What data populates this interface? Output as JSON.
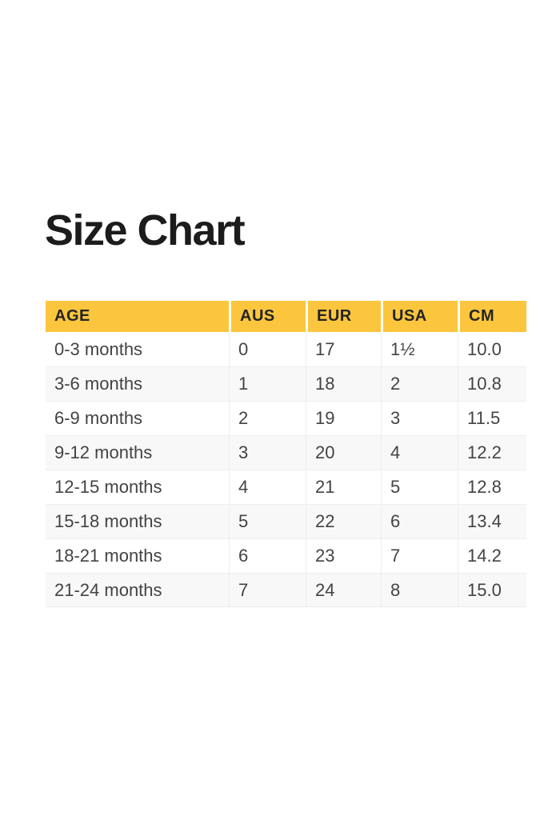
{
  "page": {
    "title": "Size Chart"
  },
  "table": {
    "columns": [
      "AGE",
      "AUS",
      "EUR",
      "USA",
      "CM"
    ],
    "rows": [
      [
        "0-3 months",
        "0",
        "17",
        "1½",
        "10.0"
      ],
      [
        "3-6 months",
        "1",
        "18",
        "2",
        "10.8"
      ],
      [
        "6-9 months",
        "2",
        "19",
        "3",
        "11.5"
      ],
      [
        "9-12 months",
        "3",
        "20",
        "4",
        "12.2"
      ],
      [
        "12-15 months",
        "4",
        "21",
        "5",
        "12.8"
      ],
      [
        "15-18 months",
        "5",
        "22",
        "6",
        "13.4"
      ],
      [
        "18-21 months",
        "6",
        "23",
        "7",
        "14.2"
      ],
      [
        "21-24 months",
        "7",
        "24",
        "8",
        "15.0"
      ]
    ],
    "colors": {
      "header_bg": "#FBC63D",
      "header_text": "#242424",
      "body_text": "#434343",
      "alt_row_bg": "#F8F8F8",
      "divider": "#EDEDED"
    }
  }
}
